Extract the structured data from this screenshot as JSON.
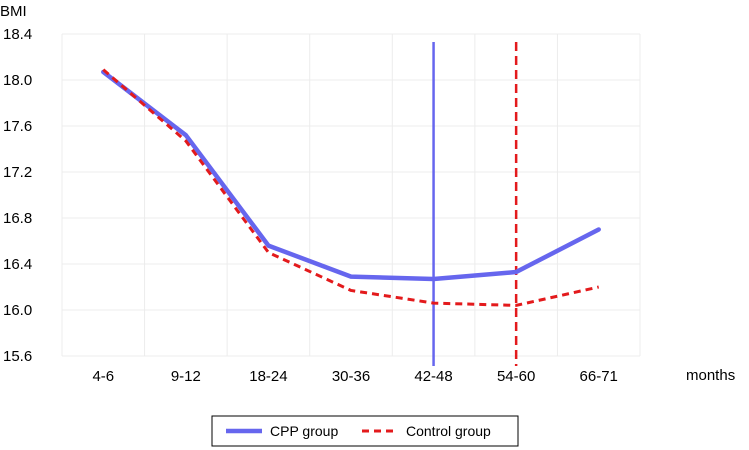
{
  "chart_data": {
    "type": "line",
    "ylabel": "BMI",
    "xlabel": "months",
    "categories": [
      "4-6",
      "9-12",
      "18-24",
      "30-36",
      "42-48",
      "54-60",
      "66-71"
    ],
    "ylim": [
      15.6,
      18.4
    ],
    "yticks": [
      "15.6",
      "16.0",
      "16.4",
      "16.8",
      "17.2",
      "17.6",
      "18.0",
      "18.4"
    ],
    "grid": true,
    "legend_position": "bottom",
    "series": [
      {
        "name": "CPP group",
        "values": [
          18.07,
          17.52,
          16.56,
          16.29,
          16.27,
          16.33,
          16.7
        ],
        "color": "#6666ee",
        "style": "solid"
      },
      {
        "name": "Control group",
        "values": [
          18.09,
          17.47,
          16.5,
          16.17,
          16.06,
          16.04,
          16.2
        ],
        "color": "#e31a1c",
        "style": "dashed"
      }
    ],
    "markers": [
      {
        "category": "42-48",
        "color": "#6666ee",
        "style": "solid"
      },
      {
        "category": "54-60",
        "color": "#e31a1c",
        "style": "dashed"
      }
    ]
  }
}
